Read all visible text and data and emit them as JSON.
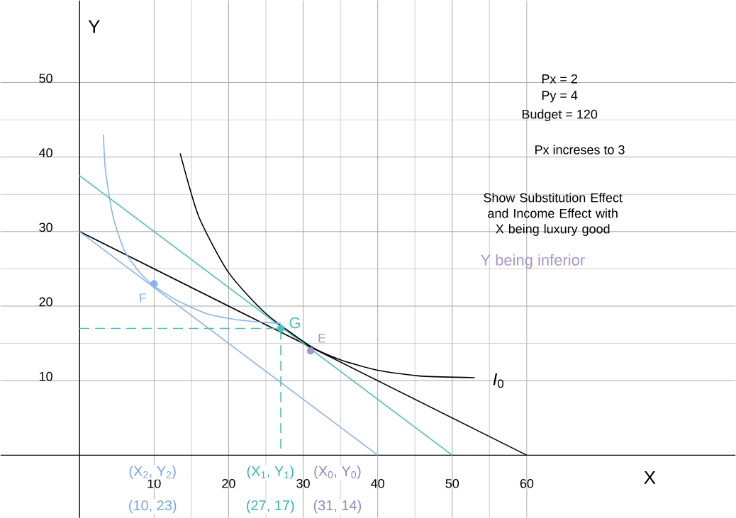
{
  "chart_data": {
    "type": "line",
    "xlabel": "X",
    "ylabel": "Y",
    "xlim": [
      -10.6,
      88
    ],
    "ylim": [
      -8.4,
      61
    ],
    "xticks": [
      10,
      20,
      30,
      40,
      50,
      60
    ],
    "yticks": [
      10,
      20,
      30,
      40,
      50
    ],
    "grid": true,
    "marker": "none",
    "series": [
      {
        "color": "#000000",
        "x": [
          0,
          60
        ],
        "values": [
          30,
          0
        ]
      },
      {
        "color": "#8ab4e8",
        "x": [
          0,
          40
        ],
        "values": [
          30,
          0
        ]
      },
      {
        "color": "#4bbfbf",
        "x": [
          0,
          50
        ],
        "values": [
          37.5,
          0
        ]
      },
      {
        "color": "#000000",
        "x": [
          13.5,
          16,
          20,
          25,
          31,
          35,
          40,
          46,
          53
        ],
        "values": [
          40.5,
          32,
          24.5,
          19,
          14.6,
          12.8,
          11.4,
          10.6,
          10.4
        ]
      },
      {
        "color": "#8ab4e8",
        "x": [
          3.2,
          3.5,
          4.5,
          6,
          8,
          10,
          13,
          17,
          21,
          25,
          27
        ],
        "values": [
          43,
          38,
          32,
          27.5,
          24.6,
          22.7,
          20.8,
          19,
          18.2,
          17.8,
          17.7
        ]
      },
      {
        "color": "#4bbfbf",
        "line_style": "dashed",
        "x": [
          0,
          27,
          27
        ],
        "values": [
          17,
          17,
          0
        ]
      },
      {
        "type": "scatter",
        "marker": "circle",
        "colors": [
          "#8ab4e8",
          "#4bbfbf",
          "#a797c8"
        ],
        "x": [
          10,
          27,
          31
        ],
        "values": [
          23,
          17,
          14
        ]
      }
    ],
    "annotations": [
      "Px = 2",
      "Py = 4",
      "Budget = 120",
      "Px  increses to 3",
      "Show Substitution Effect and Income Effect with X being luxury good",
      "Y being inferior",
      "*I*$_{0}$",
      {
        "text": "F",
        "x": 10,
        "y": 23
      },
      {
        "text": "G",
        "x": 27,
        "y": 17
      },
      {
        "text": "E",
        "x": 31,
        "y": 14
      },
      "(X$_{2}$, Y$_{2}$)",
      "(10, 23)",
      "(X$_{1}$, Y$_{1}$)",
      "(27, 17)",
      "(X$_{0}$, Y$_{0}$)",
      "(31, 14)"
    ]
  }
}
